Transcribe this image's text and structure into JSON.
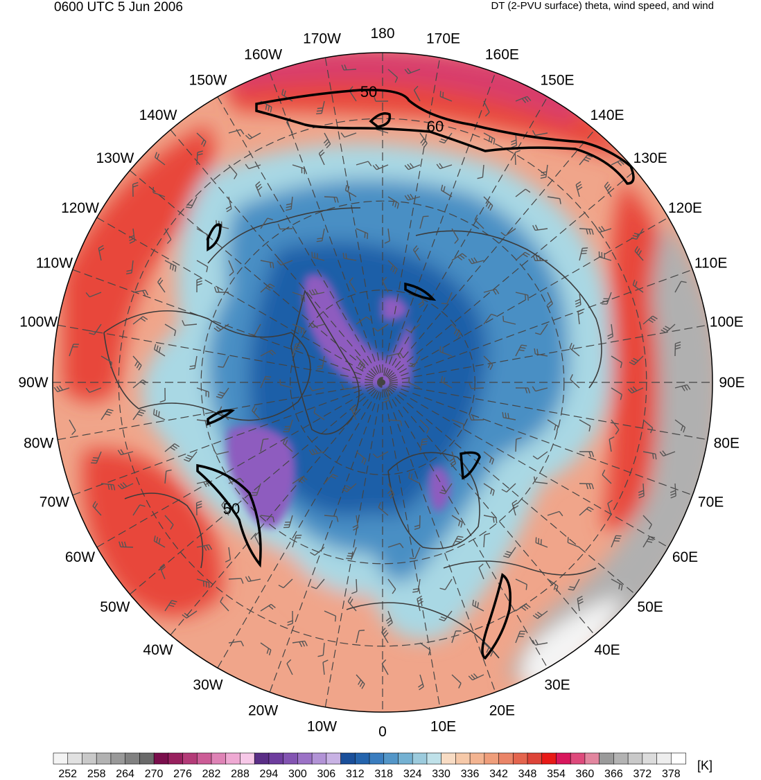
{
  "header": {
    "valid_time": "0600 UTC 5 Jun 2006",
    "product": "DT (2-PVU surface) theta, wind speed, and wind"
  },
  "map": {
    "projection": "north-polar-stereographic",
    "longitude_labels": [
      "180",
      "170E",
      "160E",
      "150E",
      "140E",
      "130E",
      "120E",
      "110E",
      "100E",
      "90E",
      "80E",
      "70E",
      "60E",
      "50E",
      "40E",
      "30E",
      "20E",
      "10E",
      "0",
      "10W",
      "20W",
      "30W",
      "40W",
      "50W",
      "60W",
      "70W",
      "80W",
      "90W",
      "100W",
      "110W",
      "120W",
      "130W",
      "140W",
      "150W",
      "160W",
      "170W"
    ],
    "contour_labels": [
      "50",
      "60",
      "50"
    ],
    "colors": {
      "cold_core": "#8e5bbf",
      "deep_blue": "#1f5fa8",
      "mid_blue": "#4a8fc4",
      "light_blue": "#a9d8e4",
      "warm": "#f0a58a",
      "hot": "#e8463a",
      "magenta": "#d83c6c",
      "gray": "#b0b0b0"
    }
  },
  "colorbar": {
    "unit": "[K]",
    "tick_labels": [
      "252",
      "258",
      "264",
      "270",
      "276",
      "282",
      "288",
      "294",
      "300",
      "306",
      "312",
      "318",
      "324",
      "330",
      "336",
      "342",
      "348",
      "354",
      "360",
      "366",
      "372",
      "378"
    ],
    "colors": [
      "#f4f4f4",
      "#e1e1e1",
      "#c9c9c9",
      "#b2b2b2",
      "#999999",
      "#818181",
      "#6a6a6a",
      "#7a0e4c",
      "#98205e",
      "#b43b78",
      "#cc5c96",
      "#df83b6",
      "#efa9d3",
      "#f7c8e8",
      "#5a2e86",
      "#6e3d9e",
      "#8354b2",
      "#9b72c6",
      "#b293d6",
      "#c8b2e4",
      "#1a4f9a",
      "#2464ad",
      "#3a7dbf",
      "#5396c8",
      "#74b1d2",
      "#9ccbdd",
      "#bfe1e9",
      "#f8dcc4",
      "#f6c9a9",
      "#f3b491",
      "#ef9e7b",
      "#ea8467",
      "#e4654e",
      "#dd4438",
      "#e81a17",
      "#d8175c",
      "#de4a7c",
      "#e2869f",
      "#9a9a9a",
      "#b3b3b3",
      "#c9c9c9",
      "#dcdcdc",
      "#eeeeee",
      "#ffffff"
    ]
  }
}
